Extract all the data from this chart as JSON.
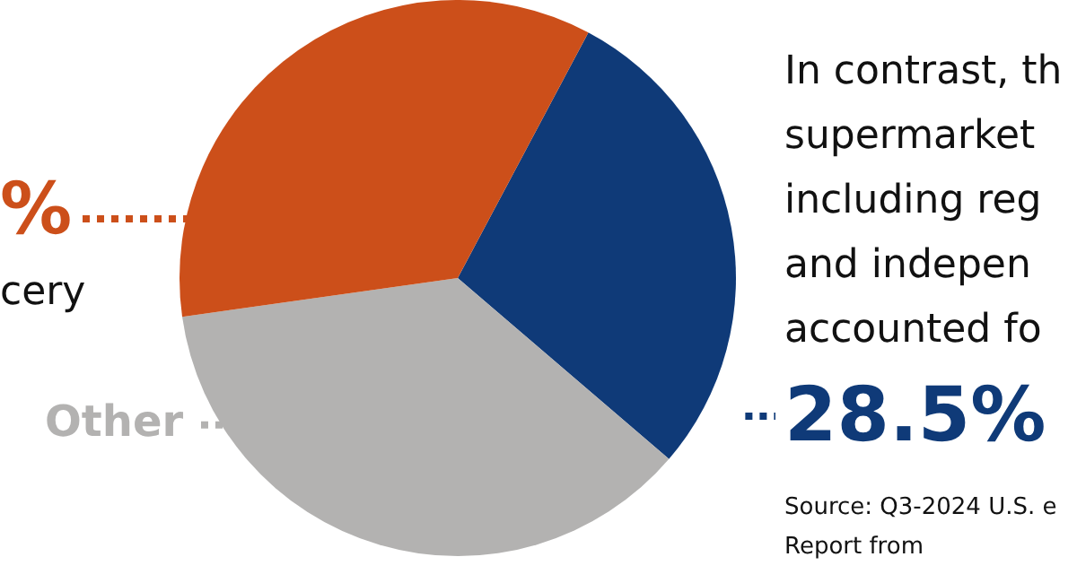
{
  "chart_data": {
    "type": "pie",
    "categories": [
      null,
      "Other",
      null
    ],
    "values": [
      28.5,
      36.5,
      35
    ],
    "colors": [
      "#0f3a78",
      "#b3b2b1",
      "#cc4f1a"
    ],
    "value_labels": [
      "28.5%",
      null,
      "%"
    ],
    "legend": false,
    "annotations": [
      "In contrast, th\nsupermarket\nincluding reg\nand indepen\naccounted fo",
      "cery",
      "Source: Q3-2024 U.S. e\nReport from"
    ]
  }
}
